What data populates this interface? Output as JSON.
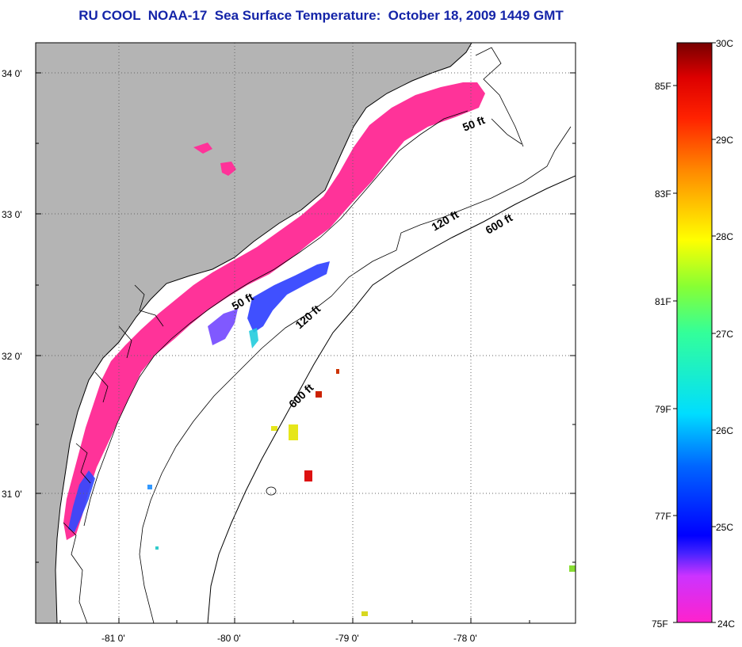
{
  "title": "RU COOL  NOAA-17  Sea Surface Temperature:  October 18, 2009 1449 GMT",
  "map": {
    "lat_labels": [
      "34 0'",
      "33 0'",
      "32 0'",
      "31 0'"
    ],
    "lon_labels": [
      "-81 0'",
      "-80 0'",
      "-79 0'",
      "-78 0'"
    ],
    "contour_labels": [
      "50 ft",
      "50 ft",
      "120 ft",
      "120 ft",
      "600 ft",
      "600 ft"
    ],
    "colors": {
      "land": "#b4b4b4",
      "warm_band": "#ff3399",
      "cool_patch": "#2b3dff",
      "cyan_patch": "#22ccdd"
    }
  },
  "colorbar": {
    "celsius_labels": [
      "30C",
      "29C",
      "28C",
      "27C",
      "26C",
      "25C",
      "24C"
    ],
    "fahrenheit_labels": [
      "85F",
      "83F",
      "81F",
      "79F",
      "77F",
      "75F"
    ]
  }
}
